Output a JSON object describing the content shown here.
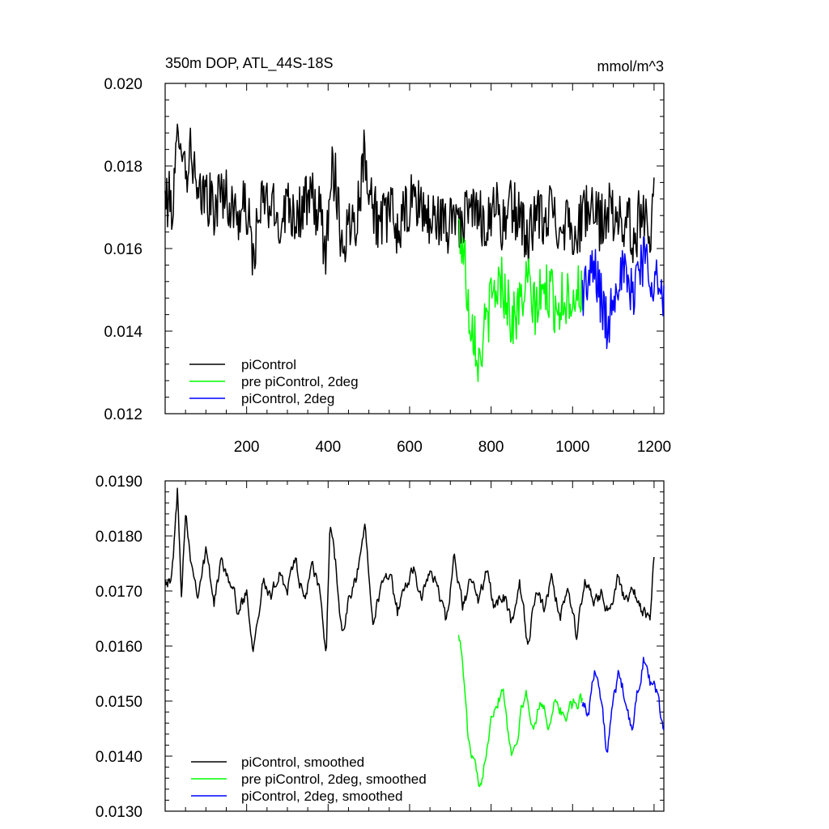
{
  "chart_data": [
    {
      "type": "line",
      "title": "350m DOP, ATL_44S-18S",
      "units": "mmol/m^3",
      "xlim": [
        0,
        1224
      ],
      "ylim": [
        0.012,
        0.02
      ],
      "xticks": [
        200,
        400,
        600,
        800,
        1000,
        1200
      ],
      "xtick_labels": [
        "200",
        "400",
        "600",
        "800",
        "1000",
        "1200"
      ],
      "yticks": [
        0.012,
        0.014,
        0.016,
        0.018,
        0.02
      ],
      "ytick_labels": [
        "0.012",
        "0.014",
        "0.016",
        "0.018",
        "0.020"
      ],
      "legend_position": "bottom-left",
      "series": [
        {
          "name": "piControl",
          "color": "#000000",
          "x_start": 0,
          "x_end": 1200,
          "anchors": [
            [
              0,
              0.0172
            ],
            [
              20,
              0.0171
            ],
            [
              35,
              0.0192
            ],
            [
              50,
              0.0178
            ],
            [
              65,
              0.0185
            ],
            [
              80,
              0.017
            ],
            [
              100,
              0.0174
            ],
            [
              120,
              0.0169
            ],
            [
              140,
              0.0175
            ],
            [
              160,
              0.017
            ],
            [
              180,
              0.0168
            ],
            [
              200,
              0.017
            ],
            [
              215,
              0.0158
            ],
            [
              240,
              0.0172
            ],
            [
              260,
              0.017
            ],
            [
              280,
              0.0166
            ],
            [
              300,
              0.0172
            ],
            [
              320,
              0.0168
            ],
            [
              340,
              0.017
            ],
            [
              360,
              0.0172
            ],
            [
              380,
              0.0168
            ],
            [
              395,
              0.0158
            ],
            [
              405,
              0.018
            ],
            [
              420,
              0.0176
            ],
            [
              435,
              0.016
            ],
            [
              450,
              0.0166
            ],
            [
              470,
              0.0168
            ],
            [
              490,
              0.0184
            ],
            [
              510,
              0.017
            ],
            [
              530,
              0.0165
            ],
            [
              550,
              0.017
            ],
            [
              570,
              0.0164
            ],
            [
              590,
              0.0168
            ],
            [
              610,
              0.0172
            ],
            [
              630,
              0.017
            ],
            [
              650,
              0.0166
            ],
            [
              670,
              0.0168
            ],
            [
              690,
              0.0164
            ],
            [
              710,
              0.017
            ],
            [
              730,
              0.0165
            ],
            [
              750,
              0.017
            ],
            [
              770,
              0.0168
            ],
            [
              790,
              0.0166
            ],
            [
              810,
              0.0172
            ],
            [
              830,
              0.0165
            ],
            [
              850,
              0.017
            ],
            [
              870,
              0.0168
            ],
            [
              890,
              0.0162
            ],
            [
              910,
              0.0168
            ],
            [
              930,
              0.0166
            ],
            [
              950,
              0.017
            ],
            [
              970,
              0.0165
            ],
            [
              990,
              0.0168
            ],
            [
              1010,
              0.0162
            ],
            [
              1030,
              0.017
            ],
            [
              1050,
              0.0168
            ],
            [
              1070,
              0.0166
            ],
            [
              1090,
              0.017
            ],
            [
              1110,
              0.0165
            ],
            [
              1130,
              0.0168
            ],
            [
              1150,
              0.0162
            ],
            [
              1170,
              0.017
            ],
            [
              1190,
              0.0164
            ],
            [
              1200,
              0.0178
            ]
          ]
        },
        {
          "name": "pre piControl, 2deg",
          "color": "#00ff00",
          "x_start": 720,
          "x_end": 1024,
          "anchors": [
            [
              720,
              0.0165
            ],
            [
              735,
              0.0158
            ],
            [
              745,
              0.0145
            ],
            [
              760,
              0.014
            ],
            [
              770,
              0.0132
            ],
            [
              780,
              0.0138
            ],
            [
              795,
              0.0145
            ],
            [
              810,
              0.015
            ],
            [
              825,
              0.0152
            ],
            [
              840,
              0.0148
            ],
            [
              850,
              0.0142
            ],
            [
              870,
              0.0146
            ],
            [
              890,
              0.0152
            ],
            [
              905,
              0.0145
            ],
            [
              920,
              0.0148
            ],
            [
              940,
              0.015
            ],
            [
              960,
              0.0146
            ],
            [
              980,
              0.0148
            ],
            [
              1000,
              0.0149
            ],
            [
              1024,
              0.015
            ]
          ]
        },
        {
          "name": "piControl, 2deg",
          "color": "#0000ff",
          "x_start": 1024,
          "x_end": 1224,
          "anchors": [
            [
              1024,
              0.015
            ],
            [
              1040,
              0.0152
            ],
            [
              1055,
              0.0155
            ],
            [
              1070,
              0.0148
            ],
            [
              1085,
              0.014
            ],
            [
              1100,
              0.015
            ],
            [
              1115,
              0.0155
            ],
            [
              1130,
              0.0152
            ],
            [
              1145,
              0.0148
            ],
            [
              1160,
              0.0156
            ],
            [
              1175,
              0.0158
            ],
            [
              1190,
              0.0155
            ],
            [
              1205,
              0.0153
            ],
            [
              1215,
              0.0148
            ],
            [
              1224,
              0.0145
            ]
          ]
        }
      ]
    },
    {
      "type": "line",
      "xlim": [
        0,
        1224
      ],
      "ylim": [
        0.013,
        0.019
      ],
      "yticks": [
        0.013,
        0.014,
        0.015,
        0.016,
        0.017,
        0.018,
        0.019
      ],
      "ytick_labels": [
        "0.0130",
        "0.0140",
        "0.0150",
        "0.0160",
        "0.0170",
        "0.0180",
        "0.0190"
      ],
      "legend_position": "bottom-left",
      "series": [
        {
          "name": "piControl, smoothed",
          "color": "#000000",
          "x_start": 0,
          "x_end": 1200,
          "anchors": [
            [
              0,
              0.0173
            ],
            [
              15,
              0.0171
            ],
            [
              30,
              0.0188
            ],
            [
              40,
              0.017
            ],
            [
              50,
              0.0185
            ],
            [
              65,
              0.0175
            ],
            [
              80,
              0.017
            ],
            [
              100,
              0.0177
            ],
            [
              120,
              0.0168
            ],
            [
              140,
              0.0176
            ],
            [
              160,
              0.0172
            ],
            [
              180,
              0.0166
            ],
            [
              200,
              0.017
            ],
            [
              215,
              0.016
            ],
            [
              240,
              0.0172
            ],
            [
              260,
              0.0168
            ],
            [
              280,
              0.0174
            ],
            [
              300,
              0.017
            ],
            [
              320,
              0.0176
            ],
            [
              340,
              0.0168
            ],
            [
              360,
              0.0174
            ],
            [
              380,
              0.017
            ],
            [
              395,
              0.0158
            ],
            [
              405,
              0.0183
            ],
            [
              420,
              0.0174
            ],
            [
              435,
              0.0161
            ],
            [
              450,
              0.0168
            ],
            [
              470,
              0.0172
            ],
            [
              490,
              0.0182
            ],
            [
              510,
              0.0166
            ],
            [
              530,
              0.017
            ],
            [
              550,
              0.0174
            ],
            [
              570,
              0.0166
            ],
            [
              590,
              0.017
            ],
            [
              610,
              0.0175
            ],
            [
              630,
              0.0168
            ],
            [
              650,
              0.0174
            ],
            [
              670,
              0.017
            ],
            [
              690,
              0.0164
            ],
            [
              710,
              0.0176
            ],
            [
              730,
              0.0167
            ],
            [
              750,
              0.0172
            ],
            [
              770,
              0.0168
            ],
            [
              790,
              0.0174
            ],
            [
              810,
              0.0166
            ],
            [
              830,
              0.017
            ],
            [
              850,
              0.0164
            ],
            [
              870,
              0.0172
            ],
            [
              890,
              0.016
            ],
            [
              910,
              0.017
            ],
            [
              930,
              0.0166
            ],
            [
              950,
              0.0172
            ],
            [
              970,
              0.0165
            ],
            [
              990,
              0.017
            ],
            [
              1010,
              0.0162
            ],
            [
              1030,
              0.0172
            ],
            [
              1050,
              0.0168
            ],
            [
              1070,
              0.017
            ],
            [
              1090,
              0.0166
            ],
            [
              1110,
              0.0172
            ],
            [
              1130,
              0.0168
            ],
            [
              1150,
              0.017
            ],
            [
              1170,
              0.0166
            ],
            [
              1190,
              0.0165
            ],
            [
              1200,
              0.0176
            ]
          ]
        },
        {
          "name": "pre piControl, 2deg, smoothed",
          "color": "#00ff00",
          "x_start": 720,
          "x_end": 1024,
          "anchors": [
            [
              720,
              0.0163
            ],
            [
              730,
              0.0157
            ],
            [
              745,
              0.0142
            ],
            [
              760,
              0.0138
            ],
            [
              772,
              0.0133
            ],
            [
              785,
              0.014
            ],
            [
              800,
              0.0148
            ],
            [
              815,
              0.015
            ],
            [
              830,
              0.0153
            ],
            [
              840,
              0.0146
            ],
            [
              850,
              0.014
            ],
            [
              870,
              0.0146
            ],
            [
              885,
              0.0152
            ],
            [
              900,
              0.0145
            ],
            [
              920,
              0.015
            ],
            [
              940,
              0.0146
            ],
            [
              960,
              0.015
            ],
            [
              980,
              0.0147
            ],
            [
              1000,
              0.0149
            ],
            [
              1024,
              0.015
            ]
          ]
        },
        {
          "name": "piControl, 2deg, smoothed",
          "color": "#0000ff",
          "x_start": 1024,
          "x_end": 1224,
          "anchors": [
            [
              1024,
              0.015
            ],
            [
              1040,
              0.0148
            ],
            [
              1055,
              0.0157
            ],
            [
              1070,
              0.015
            ],
            [
              1085,
              0.014
            ],
            [
              1100,
              0.015
            ],
            [
              1115,
              0.0155
            ],
            [
              1130,
              0.015
            ],
            [
              1145,
              0.0144
            ],
            [
              1160,
              0.0152
            ],
            [
              1175,
              0.0158
            ],
            [
              1190,
              0.0153
            ],
            [
              1205,
              0.0152
            ],
            [
              1215,
              0.0148
            ],
            [
              1224,
              0.0145
            ]
          ]
        }
      ]
    }
  ]
}
